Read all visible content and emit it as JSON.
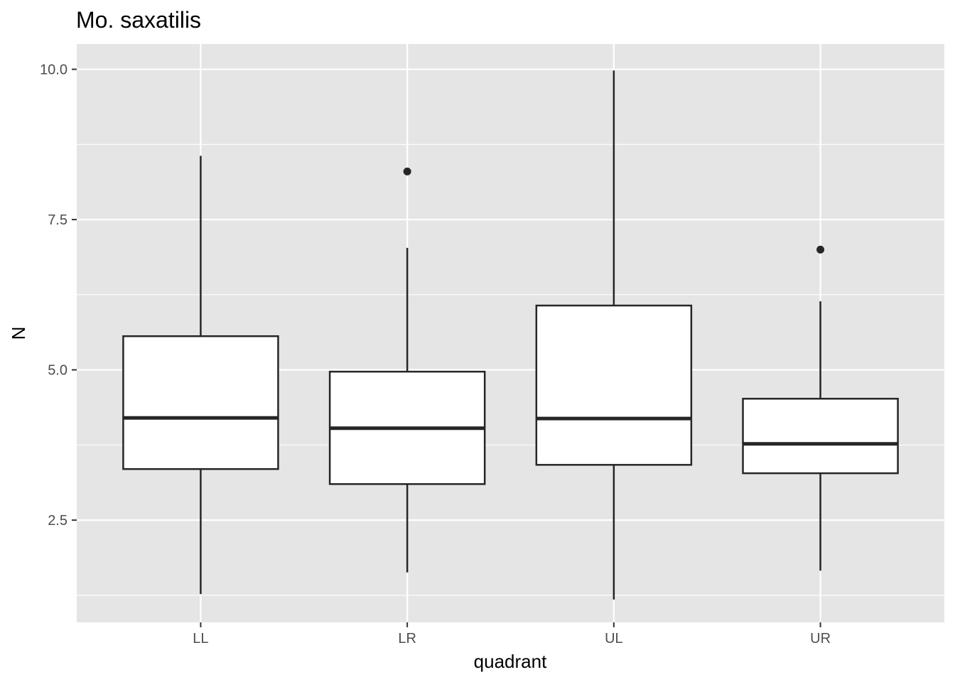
{
  "chart_data": {
    "type": "boxplot",
    "title": "Mo. saxatilis",
    "xlabel": "quadrant",
    "ylabel": "N",
    "categories": [
      "LL",
      "LR",
      "UL",
      "UR"
    ],
    "ylim": [
      0.8,
      10.42
    ],
    "yticks": [
      2.5,
      5.0,
      7.5,
      10.0
    ],
    "ytick_labels": [
      "2.5",
      "5.0",
      "7.5",
      "10.0"
    ],
    "grid": true,
    "legend": "none",
    "boxes": [
      {
        "category": "LL",
        "lower_whisker": 1.27,
        "q1": 3.35,
        "median": 4.2,
        "q3": 5.56,
        "upper_whisker": 8.56,
        "outliers": []
      },
      {
        "category": "LR",
        "lower_whisker": 1.63,
        "q1": 3.1,
        "median": 4.03,
        "q3": 4.97,
        "upper_whisker": 7.03,
        "outliers": [
          8.3
        ]
      },
      {
        "category": "UL",
        "lower_whisker": 1.18,
        "q1": 3.42,
        "median": 4.19,
        "q3": 6.07,
        "upper_whisker": 9.98,
        "outliers": []
      },
      {
        "category": "UR",
        "lower_whisker": 1.66,
        "q1": 3.28,
        "median": 3.77,
        "q3": 4.52,
        "upper_whisker": 6.14,
        "outliers": [
          7.0
        ]
      }
    ],
    "colors": {
      "panel": "#e5e5e5",
      "grid": "#ffffff",
      "box_fill": "#ffffff",
      "box_stroke": "#262626",
      "tick_text": "#4d4d4d"
    }
  }
}
